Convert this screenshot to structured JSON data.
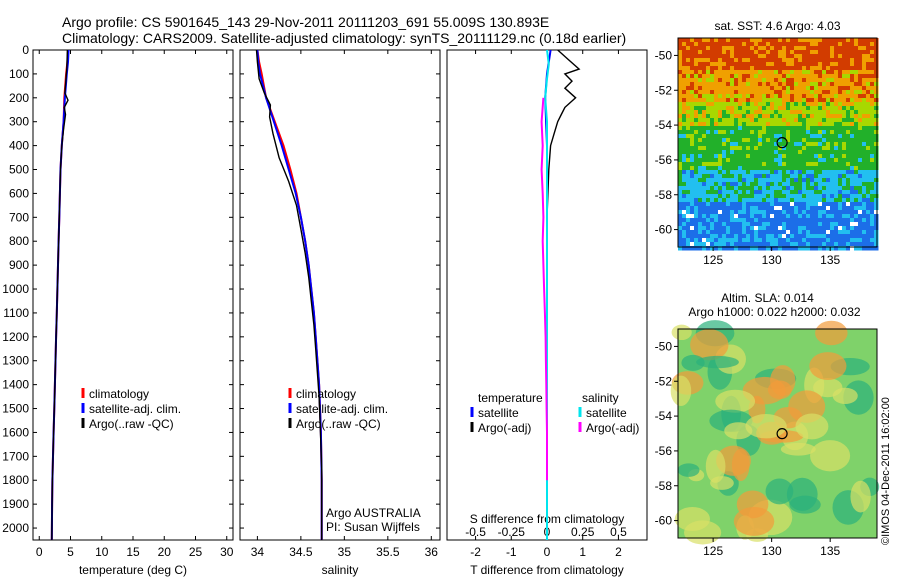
{
  "header": {
    "title_line1": "Argo profile: CS 5901645_143 29-Nov-2011 20111203_691 55.009S 130.893E",
    "title_line2": "Climatology: CARS2009. Satellite-adjusted climatology: synTS_20111129.nc (0.18d earlier)"
  },
  "side_stamp": "©IMOS 04-Dec-2011 16:02:00",
  "colors": {
    "climatology": "#ff0000",
    "satellite": "#0000ff",
    "argo": "#000000",
    "cyan": "#00e5ee",
    "magenta": "#ff00ff"
  },
  "chart_data": [
    {
      "type": "line",
      "id": "temperature",
      "xlabel": "temperature (deg C)",
      "ylabel": "",
      "xlim": [
        -1,
        31
      ],
      "ylim": [
        2050,
        0
      ],
      "xticks": [
        0,
        5,
        10,
        15,
        20,
        25,
        30
      ],
      "yticks": [
        0,
        100,
        200,
        300,
        400,
        500,
        600,
        700,
        800,
        900,
        1000,
        1100,
        1200,
        1300,
        1400,
        1500,
        1600,
        1700,
        1800,
        1900,
        2000
      ],
      "legend": {
        "position": "bottom-center",
        "items": [
          "climatology",
          "satellite-adj. clim.",
          "Argo(..raw -QC)"
        ]
      },
      "series": [
        {
          "name": "climatology",
          "color": "#ff0000",
          "points": [
            [
              4.6,
              0
            ],
            [
              4.5,
              50
            ],
            [
              4.3,
              100
            ],
            [
              4.0,
              200
            ],
            [
              3.9,
              300
            ],
            [
              3.6,
              400
            ],
            [
              3.4,
              500
            ],
            [
              3.3,
              600
            ],
            [
              3.2,
              700
            ],
            [
              3.1,
              800
            ],
            [
              3.0,
              900
            ],
            [
              2.9,
              1000
            ],
            [
              2.8,
              1100
            ],
            [
              2.7,
              1200
            ],
            [
              2.6,
              1300
            ],
            [
              2.5,
              1400
            ],
            [
              2.4,
              1500
            ],
            [
              2.3,
              1600
            ],
            [
              2.2,
              1700
            ],
            [
              2.1,
              1800
            ],
            [
              2.05,
              1900
            ],
            [
              2.0,
              2050
            ]
          ]
        },
        {
          "name": "satellite-adj. clim.",
          "color": "#0000ff",
          "points": [
            [
              4.7,
              0
            ],
            [
              4.6,
              50
            ],
            [
              4.4,
              100
            ],
            [
              4.1,
              200
            ],
            [
              3.9,
              300
            ],
            [
              3.6,
              400
            ],
            [
              3.4,
              500
            ],
            [
              3.3,
              600
            ],
            [
              3.2,
              700
            ],
            [
              3.1,
              800
            ],
            [
              3.0,
              900
            ],
            [
              2.9,
              1000
            ],
            [
              2.8,
              1100
            ],
            [
              2.7,
              1200
            ],
            [
              2.6,
              1300
            ],
            [
              2.5,
              1400
            ],
            [
              2.4,
              1500
            ],
            [
              2.3,
              1600
            ],
            [
              2.2,
              1700
            ],
            [
              2.1,
              1800
            ],
            [
              2.05,
              1900
            ],
            [
              2.0,
              2050
            ]
          ]
        },
        {
          "name": "Argo(..raw -QC)",
          "color": "#000000",
          "points": [
            [
              4.5,
              0
            ],
            [
              4.4,
              80
            ],
            [
              4.1,
              180
            ],
            [
              4.6,
              210
            ],
            [
              4.0,
              240
            ],
            [
              4.2,
              270
            ],
            [
              3.9,
              330
            ],
            [
              3.6,
              400
            ],
            [
              3.4,
              500
            ],
            [
              3.3,
              600
            ],
            [
              3.2,
              700
            ],
            [
              3.1,
              800
            ],
            [
              3.0,
              900
            ],
            [
              2.9,
              1000
            ],
            [
              2.8,
              1100
            ],
            [
              2.7,
              1200
            ],
            [
              2.6,
              1300
            ],
            [
              2.5,
              1400
            ],
            [
              2.4,
              1500
            ],
            [
              2.3,
              1600
            ],
            [
              2.2,
              1700
            ],
            [
              2.1,
              1800
            ],
            [
              2.05,
              1900
            ],
            [
              2.0,
              2050
            ]
          ]
        }
      ]
    },
    {
      "type": "line",
      "id": "salinity",
      "xlabel": "salinity",
      "ylabel": "",
      "xlim": [
        33.8,
        36.1
      ],
      "ylim": [
        2050,
        0
      ],
      "xticks": [
        34,
        34.5,
        35,
        35.5,
        36
      ],
      "yticks": [
        0,
        100,
        200,
        300,
        400,
        500,
        600,
        700,
        800,
        900,
        1000,
        1100,
        1200,
        1300,
        1400,
        1500,
        1600,
        1700,
        1800,
        1900,
        2000
      ],
      "legend": {
        "position": "bottom-center",
        "items": [
          "climatology",
          "satellite-adj. clim.",
          "Argo(..raw -QC)"
        ]
      },
      "annotation": [
        "Argo AUSTRALIA",
        "PI: Susan Wijffels"
      ],
      "series": [
        {
          "name": "climatology",
          "color": "#ff0000",
          "points": [
            [
              34.0,
              0
            ],
            [
              34.02,
              50
            ],
            [
              34.05,
              100
            ],
            [
              34.1,
              200
            ],
            [
              34.2,
              300
            ],
            [
              34.3,
              400
            ],
            [
              34.38,
              500
            ],
            [
              34.45,
              600
            ],
            [
              34.5,
              700
            ],
            [
              34.55,
              800
            ],
            [
              34.59,
              900
            ],
            [
              34.62,
              1000
            ],
            [
              34.65,
              1100
            ],
            [
              34.67,
              1200
            ],
            [
              34.69,
              1300
            ],
            [
              34.71,
              1400
            ],
            [
              34.72,
              1500
            ],
            [
              34.73,
              1600
            ],
            [
              34.735,
              1700
            ],
            [
              34.74,
              1800
            ],
            [
              34.74,
              1900
            ],
            [
              34.74,
              2050
            ]
          ]
        },
        {
          "name": "satellite-adj. clim.",
          "color": "#0000ff",
          "points": [
            [
              34.0,
              0
            ],
            [
              34.01,
              50
            ],
            [
              34.03,
              100
            ],
            [
              34.1,
              200
            ],
            [
              34.19,
              300
            ],
            [
              34.28,
              400
            ],
            [
              34.36,
              500
            ],
            [
              34.44,
              600
            ],
            [
              34.5,
              700
            ],
            [
              34.55,
              800
            ],
            [
              34.59,
              900
            ],
            [
              34.62,
              1000
            ],
            [
              34.65,
              1100
            ],
            [
              34.67,
              1200
            ],
            [
              34.69,
              1300
            ],
            [
              34.71,
              1400
            ],
            [
              34.72,
              1500
            ],
            [
              34.73,
              1600
            ],
            [
              34.735,
              1700
            ],
            [
              34.74,
              1800
            ],
            [
              34.74,
              1900
            ],
            [
              34.74,
              2050
            ]
          ]
        },
        {
          "name": "Argo(..raw -QC)",
          "color": "#000000",
          "points": [
            [
              33.99,
              0
            ],
            [
              34.0,
              50
            ],
            [
              34.02,
              120
            ],
            [
              34.08,
              180
            ],
            [
              34.15,
              230
            ],
            [
              34.14,
              280
            ],
            [
              34.18,
              350
            ],
            [
              34.25,
              450
            ],
            [
              34.36,
              550
            ],
            [
              34.45,
              650
            ],
            [
              34.5,
              750
            ],
            [
              34.55,
              850
            ],
            [
              34.59,
              950
            ],
            [
              34.62,
              1050
            ],
            [
              34.65,
              1150
            ],
            [
              34.67,
              1250
            ],
            [
              34.69,
              1350
            ],
            [
              34.71,
              1450
            ],
            [
              34.72,
              1550
            ],
            [
              34.73,
              1650
            ],
            [
              34.74,
              1750
            ],
            [
              34.74,
              1850
            ],
            [
              34.74,
              1950
            ],
            [
              34.74,
              2050
            ]
          ]
        }
      ]
    },
    {
      "type": "line",
      "id": "difference",
      "xlabel": "T difference from climatology",
      "xlabel_top": "S difference from climatology",
      "ylabel": "",
      "xlim": [
        -2.8,
        2.8
      ],
      "ylim": [
        2050,
        0
      ],
      "xticks": [
        -2,
        -1,
        0,
        1,
        2
      ],
      "xticks_s": [
        -0.5,
        -0.25,
        0,
        0.25,
        0.5
      ],
      "legend": {
        "position": "bottom-center",
        "headers": [
          "temperature",
          "salinity"
        ],
        "items": [
          "satellite",
          "Argo(-adj)",
          "satellite",
          "Argo(-adj)"
        ]
      },
      "series": [
        {
          "name": "satellite",
          "group": "temperature",
          "color": "#0000ff",
          "points": [
            [
              0.1,
              0
            ],
            [
              0.05,
              50
            ],
            [
              0.0,
              100
            ],
            [
              -0.05,
              200
            ],
            [
              0.0,
              400
            ],
            [
              0.0,
              800
            ],
            [
              0.0,
              1200
            ],
            [
              0.0,
              2050
            ]
          ]
        },
        {
          "name": "Argo(-adj)",
          "group": "temperature",
          "color": "#000000",
          "points": [
            [
              0.3,
              0
            ],
            [
              0.6,
              40
            ],
            [
              0.9,
              80
            ],
            [
              0.5,
              100
            ],
            [
              0.7,
              130
            ],
            [
              0.5,
              160
            ],
            [
              0.8,
              200
            ],
            [
              0.5,
              240
            ],
            [
              0.4,
              270
            ],
            [
              0.3,
              300
            ],
            [
              0.2,
              350
            ],
            [
              0.1,
              400
            ],
            [
              0.05,
              500
            ],
            [
              0.0,
              700
            ],
            [
              0.0,
              1100
            ],
            [
              0.0,
              2050
            ]
          ]
        },
        {
          "name": "satellite",
          "group": "salinity",
          "color": "#00e5ee",
          "points": [
            [
              0.0,
              0
            ],
            [
              0.05,
              60
            ],
            [
              0.0,
              120
            ],
            [
              -0.05,
              200
            ],
            [
              0.0,
              300
            ],
            [
              0.0,
              600
            ],
            [
              0.0,
              1000
            ],
            [
              0.0,
              2050
            ]
          ]
        },
        {
          "name": "Argo(-adj)",
          "group": "salinity",
          "color": "#ff00ff",
          "points": [
            [
              -0.1,
              200
            ],
            [
              -0.15,
              300
            ],
            [
              -0.12,
              400
            ],
            [
              -0.15,
              500
            ],
            [
              -0.12,
              600
            ],
            [
              -0.1,
              700
            ],
            [
              -0.12,
              800
            ],
            [
              -0.1,
              900
            ],
            [
              -0.08,
              1000
            ],
            [
              -0.06,
              1100
            ],
            [
              -0.04,
              1200
            ],
            [
              -0.03,
              1300
            ],
            [
              -0.02,
              1400
            ],
            [
              -0.01,
              1500
            ],
            [
              0.0,
              1600
            ],
            [
              0.0,
              1700
            ],
            [
              0.0,
              1800
            ]
          ]
        }
      ]
    },
    {
      "type": "heatmap",
      "id": "sst",
      "title": "sat. SST: 4.6  Argo: 4.03",
      "xlim": [
        122,
        139
      ],
      "ylim": [
        -61,
        -49
      ],
      "xticks": [
        125,
        130,
        135
      ],
      "yticks": [
        -50,
        -52,
        -54,
        -56,
        -58,
        -60
      ],
      "marker": {
        "lon": 130.893,
        "lat": -55.009
      },
      "colors": {
        "warm": "#d23c00",
        "mid": "#f0a000",
        "yellowgreen": "#a8d800",
        "green": "#22b02a",
        "cyan": "#22bff0",
        "blue": "#1c6ee8"
      }
    },
    {
      "type": "heatmap",
      "id": "sla",
      "title_line1": "Altim. SLA: 0.014",
      "title_line2": "Argo h1000: 0.022 h2000: 0.032",
      "xlim": [
        122,
        139
      ],
      "ylim": [
        -61,
        -49
      ],
      "xticks": [
        125,
        130,
        135
      ],
      "yticks": [
        -50,
        -52,
        -54,
        -56,
        -58,
        -60
      ],
      "marker": {
        "lon": 130.893,
        "lat": -55.009
      },
      "colors": {
        "base": "#7fd26a",
        "high": "#f29b3a",
        "low": "#2bb07c",
        "mid": "#d8e066"
      }
    }
  ]
}
